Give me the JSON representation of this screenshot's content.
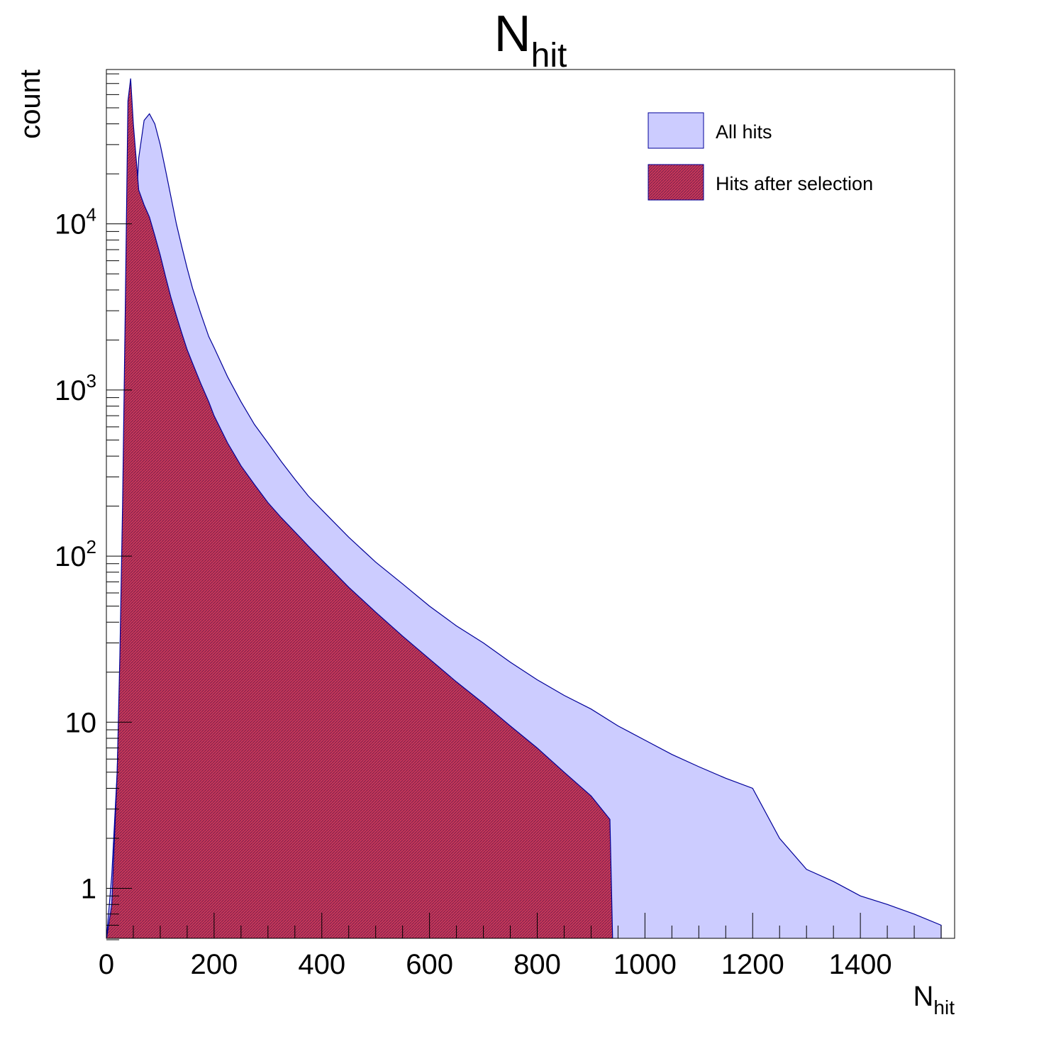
{
  "chart_data": {
    "type": "area",
    "title": {
      "main": "N",
      "sub": "hit"
    },
    "xlabel": {
      "main": "N",
      "sub": "hit"
    },
    "ylabel": "count",
    "xlim": [
      0,
      1575
    ],
    "ylim": [
      0.5,
      85000
    ],
    "yscale": "log",
    "grid": false,
    "legend_position": "top-right",
    "x_ticks": [
      0,
      200,
      400,
      600,
      800,
      1000,
      1200,
      1400
    ],
    "y_ticks": [
      {
        "value": 1,
        "base": "1",
        "exp": ""
      },
      {
        "value": 10,
        "base": "10",
        "exp": ""
      },
      {
        "value": 100,
        "base": "10",
        "exp": "2"
      },
      {
        "value": 1000,
        "base": "10",
        "exp": "3"
      },
      {
        "value": 10000,
        "base": "10",
        "exp": "4"
      }
    ],
    "series": [
      {
        "name": "All hits",
        "fill": "#ccccff",
        "line": "#000099",
        "x": [
          0,
          10,
          20,
          30,
          40,
          50,
          60,
          70,
          80,
          90,
          100,
          110,
          120,
          130,
          140,
          150,
          160,
          175,
          190,
          200,
          225,
          250,
          275,
          300,
          325,
          350,
          375,
          400,
          450,
          500,
          550,
          600,
          650,
          700,
          750,
          800,
          850,
          900,
          950,
          1000,
          1050,
          1100,
          1150,
          1200,
          1250,
          1300,
          1350,
          1400,
          1450,
          1500,
          1550
        ],
        "values": [
          0,
          1.2,
          5,
          60,
          800,
          6000,
          25000,
          42000,
          46000,
          40000,
          30000,
          21000,
          14500,
          10000,
          7300,
          5400,
          4100,
          2900,
          2100,
          1800,
          1200,
          850,
          620,
          480,
          370,
          290,
          230,
          190,
          130,
          92,
          68,
          50,
          38,
          30,
          23,
          18,
          14.5,
          12,
          9.5,
          7.8,
          6.4,
          5.4,
          4.6,
          4,
          2,
          1.3,
          1.1,
          0.9,
          0.8,
          0.7,
          0.6
        ]
      },
      {
        "name": "Hits after selection",
        "fill": "#cc3355",
        "line": "#000099",
        "x": [
          0,
          10,
          20,
          25,
          30,
          35,
          40,
          45,
          50,
          60,
          70,
          80,
          90,
          100,
          110,
          120,
          130,
          140,
          150,
          160,
          175,
          190,
          200,
          225,
          250,
          275,
          300,
          325,
          350,
          375,
          400,
          450,
          500,
          550,
          600,
          650,
          700,
          750,
          800,
          850,
          900,
          935,
          940
        ],
        "values": [
          0,
          0.8,
          5,
          25,
          200,
          3000,
          55000,
          75000,
          40000,
          16000,
          13000,
          11000,
          8500,
          6500,
          4800,
          3600,
          2800,
          2200,
          1750,
          1450,
          1100,
          850,
          700,
          480,
          350,
          270,
          210,
          170,
          140,
          115,
          95,
          65,
          46,
          33,
          24,
          17.5,
          13,
          9.5,
          7,
          5,
          3.6,
          2.6,
          0
        ]
      }
    ]
  }
}
